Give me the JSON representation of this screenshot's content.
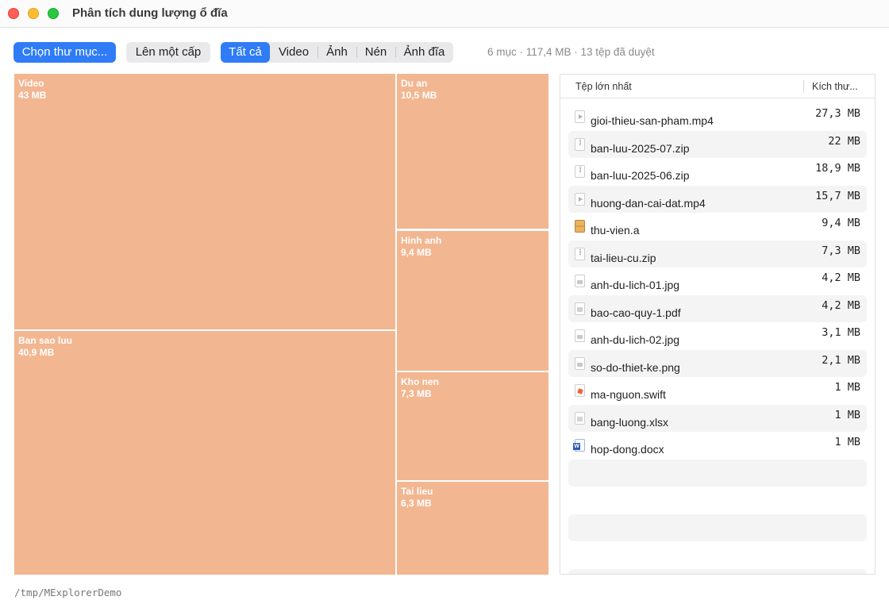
{
  "window": {
    "title": "Phân tích dung lượng ổ đĩa"
  },
  "toolbar": {
    "choose_folder": "Chọn thư mục...",
    "up_one_level": "Lên một cấp",
    "filters": [
      "Tất cả",
      "Video",
      "Ảnh",
      "Nén",
      "Ảnh đĩa"
    ],
    "selected_filter": "Tất cả",
    "summary": "6 mục · 117,4 MB · 13 tệp đã duyệt"
  },
  "treemap": {
    "tile_color": "#f2b691",
    "tiles": [
      {
        "name": "Video",
        "size": "43 MB"
      },
      {
        "name": "Ban sao luu",
        "size": "40,9 MB"
      },
      {
        "name": "Du an",
        "size": "10,5 MB"
      },
      {
        "name": "Hinh anh",
        "size": "9,4 MB"
      },
      {
        "name": "Kho nen",
        "size": "7,3 MB"
      },
      {
        "name": "Tai lieu",
        "size": "6,3 MB"
      }
    ]
  },
  "filelist": {
    "col_name": "Tệp lớn nhất",
    "col_size": "Kích thư...",
    "files": [
      {
        "name": "gioi-thieu-san-pham.mp4",
        "size": "27,3 MB",
        "icon": "video-file-icon"
      },
      {
        "name": "ban-luu-2025-07.zip",
        "size": "22 MB",
        "icon": "zip-file-icon"
      },
      {
        "name": "ban-luu-2025-06.zip",
        "size": "18,9 MB",
        "icon": "zip-file-icon"
      },
      {
        "name": "huong-dan-cai-dat.mp4",
        "size": "15,7 MB",
        "icon": "video-file-icon"
      },
      {
        "name": "thu-vien.a",
        "size": "9,4 MB",
        "icon": "library-file-icon"
      },
      {
        "name": "tai-lieu-cu.zip",
        "size": "7,3 MB",
        "icon": "zip-file-icon"
      },
      {
        "name": "anh-du-lich-01.jpg",
        "size": "4,2 MB",
        "icon": "image-file-icon"
      },
      {
        "name": "bao-cao-quy-1.pdf",
        "size": "4,2 MB",
        "icon": "pdf-file-icon"
      },
      {
        "name": "anh-du-lich-02.jpg",
        "size": "3,1 MB",
        "icon": "image-file-icon"
      },
      {
        "name": "so-do-thiet-ke.png",
        "size": "2,1 MB",
        "icon": "image-file-icon"
      },
      {
        "name": "ma-nguon.swift",
        "size": "1 MB",
        "icon": "swift-file-icon"
      },
      {
        "name": "bang-luong.xlsx",
        "size": "1 MB",
        "icon": "spreadsheet-file-icon"
      },
      {
        "name": "hop-dong.docx",
        "size": "1 MB",
        "icon": "word-file-icon"
      }
    ]
  },
  "footer": {
    "path": "/tmp/MExplorerDemo"
  }
}
